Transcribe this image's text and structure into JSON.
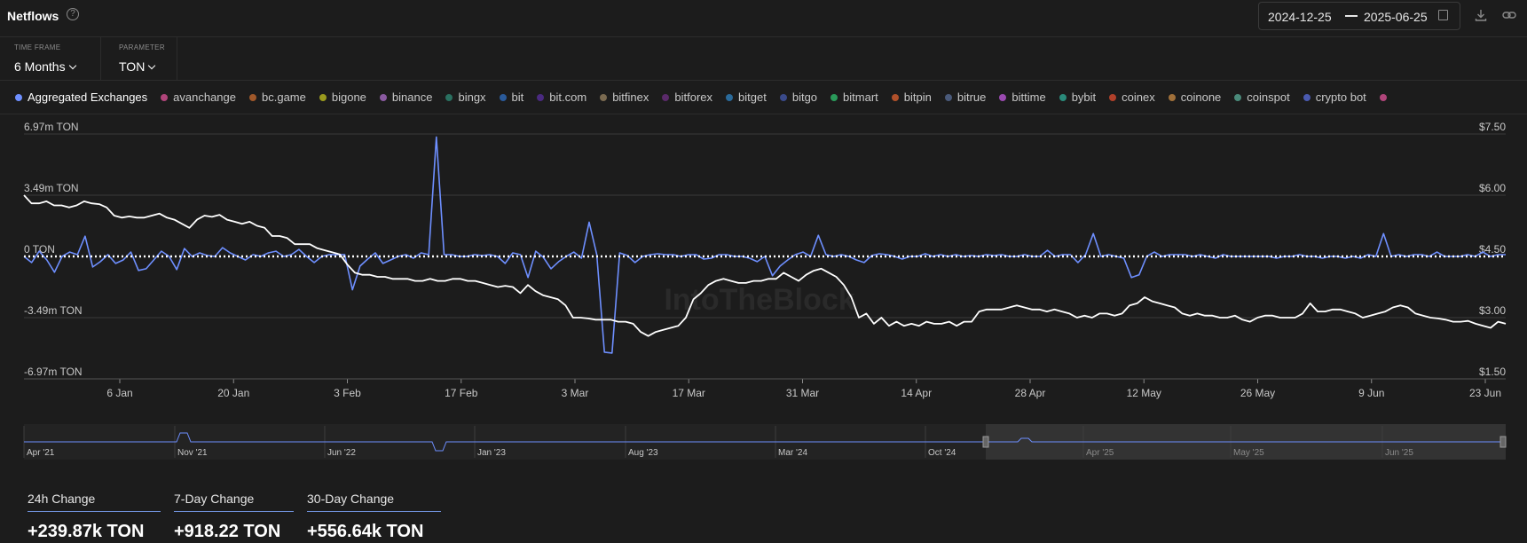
{
  "header": {
    "title": "Netflows",
    "date_from": "2024-12-25",
    "date_to": "2025-06-25"
  },
  "controls": {
    "timeframe_label": "TIME FRAME",
    "timeframe_value": "6 Months",
    "parameter_label": "PARAMETER",
    "parameter_value": "TON"
  },
  "legend": [
    {
      "name": "Aggregated Exchanges",
      "color": "#6e8fff"
    },
    {
      "name": "avanchange",
      "color": "#b0457a"
    },
    {
      "name": "bc.game",
      "color": "#a0582a"
    },
    {
      "name": "bigone",
      "color": "#9a9a1e"
    },
    {
      "name": "binance",
      "color": "#8a5aa0"
    },
    {
      "name": "bingx",
      "color": "#2a7060"
    },
    {
      "name": "bit",
      "color": "#2a5a9a"
    },
    {
      "name": "bit.com",
      "color": "#4a2a80"
    },
    {
      "name": "bitfinex",
      "color": "#7a6a50"
    },
    {
      "name": "bitforex",
      "color": "#5a2a6a"
    },
    {
      "name": "bitget",
      "color": "#2a6a9a"
    },
    {
      "name": "bitgo",
      "color": "#3a4a8a"
    },
    {
      "name": "bitmart",
      "color": "#2a9a5a"
    },
    {
      "name": "bitpin",
      "color": "#b0502a"
    },
    {
      "name": "bitrue",
      "color": "#4a5a7a"
    },
    {
      "name": "bittime",
      "color": "#9a4ab0"
    },
    {
      "name": "bybit",
      "color": "#2a8a7a"
    },
    {
      "name": "coinex",
      "color": "#b0402a"
    },
    {
      "name": "coinone",
      "color": "#a0703a"
    },
    {
      "name": "coinspot",
      "color": "#4a8a7a"
    },
    {
      "name": "crypto bot",
      "color": "#4a5ab0"
    },
    {
      "name": "",
      "color": "#b0457a"
    }
  ],
  "chart_data": {
    "type": "line",
    "left_axis": {
      "ticks": [
        "6.97m TON",
        "3.49m TON",
        "0 TON",
        "-3.49m TON",
        "-6.97m TON"
      ],
      "range": [
        -6.97,
        6.97
      ],
      "unit": "m TON"
    },
    "right_axis": {
      "ticks": [
        "$7.50",
        "$6.00",
        "$4.50",
        "$3.00",
        "$1.50"
      ],
      "range": [
        1.5,
        7.5
      ]
    },
    "x_ticks": [
      "6 Jan",
      "20 Jan",
      "3 Feb",
      "17 Feb",
      "3 Mar",
      "17 Mar",
      "31 Mar",
      "14 Apr",
      "28 Apr",
      "12 May",
      "26 May",
      "9 Jun",
      "23 Jun"
    ],
    "watermark": "IntoTheBlock",
    "series": [
      {
        "name": "Aggregated Exchanges",
        "color": "#6e8fff",
        "values": [
          0.0,
          -0.35,
          0.3,
          -0.2,
          -0.9,
          0.0,
          0.25,
          0.1,
          1.15,
          -0.6,
          -0.3,
          0.1,
          -0.4,
          -0.2,
          0.25,
          -0.8,
          -0.7,
          -0.2,
          0.3,
          0.0,
          -0.75,
          0.45,
          0.0,
          0.2,
          0.05,
          0.0,
          0.5,
          0.2,
          0.0,
          -0.2,
          0.1,
          0.0,
          0.2,
          0.3,
          0.0,
          0.1,
          0.4,
          0.0,
          -0.35,
          0.0,
          0.1,
          0.1,
          0.1,
          -1.9,
          -0.55,
          -0.15,
          0.2,
          -0.4,
          -0.2,
          0.0,
          0.1,
          -0.1,
          0.2,
          0.1,
          6.8,
          0.1,
          0.1,
          0.0,
          0.0,
          0.1,
          0.05,
          0.1,
          0.0,
          -0.4,
          0.2,
          0.1,
          -1.2,
          0.3,
          -0.05,
          -0.7,
          -0.3,
          0.0,
          0.25,
          -0.1,
          1.95,
          0.1,
          -5.45,
          -5.5,
          0.2,
          0.05,
          -0.35,
          0.0,
          0.1,
          0.15,
          0.1,
          0.1,
          0.0,
          0.1,
          0.1,
          -0.15,
          -0.1,
          0.1,
          0.1,
          0.0,
          0.0,
          -0.1,
          -0.3,
          0.0,
          -1.1,
          -0.55,
          -0.2,
          0.1,
          0.25,
          0.0,
          1.2,
          0.1,
          0.0,
          0.1,
          0.0,
          -0.2,
          -0.35,
          0.05,
          0.15,
          0.1,
          0.0,
          -0.15,
          0.0,
          0.0,
          0.15,
          0.0,
          0.1,
          0.0,
          0.1,
          0.0,
          0.05,
          0.0,
          0.1,
          0.05,
          0.1,
          0.0,
          0.0,
          0.1,
          0.0,
          0.0,
          0.35,
          0.0,
          0.1,
          0.1,
          -0.35,
          0.1,
          1.3,
          0.0,
          0.1,
          0.0,
          -0.1,
          -1.2,
          -1.05,
          0.0,
          0.25,
          0.0,
          0.1,
          0.1,
          0.1,
          0.0,
          0.1,
          0.0,
          -0.1,
          0.1,
          0.0,
          0.0,
          0.0,
          0.0,
          0.0,
          0.0,
          -0.1,
          0.0,
          0.0,
          0.1,
          0.0,
          0.0,
          -0.1,
          0.0,
          0.0,
          -0.1,
          0.0,
          -0.1,
          0.1,
          0.0,
          1.3,
          0.0,
          0.1,
          0.0,
          0.1,
          0.1,
          0.0,
          0.25,
          0.0,
          0.0,
          0.0,
          0.1,
          0.0,
          0.25,
          0.0,
          0.1,
          0.1
        ]
      },
      {
        "name": "",
        "color": "#ffffff",
        "values": [
          6.0,
          5.8,
          5.8,
          5.85,
          5.75,
          5.75,
          5.7,
          5.75,
          5.85,
          5.8,
          5.78,
          5.7,
          5.5,
          5.45,
          5.48,
          5.45,
          5.45,
          5.5,
          5.55,
          5.45,
          5.4,
          5.3,
          5.2,
          5.4,
          5.5,
          5.47,
          5.52,
          5.4,
          5.35,
          5.3,
          5.35,
          5.25,
          5.2,
          5.0,
          5.0,
          4.95,
          4.8,
          4.8,
          4.8,
          4.7,
          4.65,
          4.6,
          4.55,
          4.3,
          4.1,
          4.05,
          4.05,
          4.0,
          4.0,
          3.95,
          3.95,
          3.95,
          3.9,
          3.9,
          3.95,
          3.9,
          3.9,
          3.95,
          3.95,
          3.9,
          3.9,
          3.85,
          3.8,
          3.75,
          3.78,
          3.75,
          3.6,
          3.8,
          3.65,
          3.55,
          3.5,
          3.45,
          3.3,
          3.0,
          3.0,
          2.98,
          2.95,
          2.95,
          2.95,
          2.9,
          2.9,
          2.85,
          2.65,
          2.55,
          2.65,
          2.7,
          2.75,
          2.8,
          3.0,
          3.45,
          3.6,
          3.8,
          3.9,
          3.95,
          3.9,
          3.85,
          3.85,
          3.9,
          3.9,
          3.95,
          3.95,
          4.1,
          4.0,
          3.9,
          4.05,
          4.15,
          4.2,
          4.1,
          4.0,
          3.8,
          3.5,
          3.0,
          3.1,
          2.85,
          3.0,
          2.8,
          2.9,
          2.8,
          2.85,
          2.8,
          2.9,
          2.85,
          2.85,
          2.9,
          2.8,
          2.9,
          2.9,
          3.15,
          3.2,
          3.2,
          3.2,
          3.25,
          3.3,
          3.25,
          3.2,
          3.2,
          3.15,
          3.2,
          3.15,
          3.1,
          3.0,
          3.05,
          3.0,
          3.1,
          3.1,
          3.05,
          3.1,
          3.3,
          3.35,
          3.5,
          3.4,
          3.35,
          3.3,
          3.25,
          3.1,
          3.05,
          3.1,
          3.05,
          3.05,
          3.0,
          3.0,
          3.05,
          2.95,
          2.9,
          3.0,
          3.05,
          3.05,
          3.0,
          3.0,
          3.0,
          3.1,
          3.35,
          3.15,
          3.15,
          3.2,
          3.2,
          3.15,
          3.1,
          3.0,
          3.05,
          3.1,
          3.15,
          3.25,
          3.3,
          3.25,
          3.1,
          3.05,
          3.0,
          2.98,
          2.95,
          2.9,
          2.9,
          2.92,
          2.85,
          2.8,
          2.75,
          2.9,
          2.85
        ]
      }
    ]
  },
  "navigator": {
    "labels": [
      "Apr '21",
      "Nov '21",
      "Jun '22",
      "Jan '23",
      "Aug '23",
      "Mar '24",
      "Oct '24",
      "Apr '25",
      "May '25",
      "Jun '25"
    ]
  },
  "stats": [
    {
      "label": "24h Change",
      "value": "+239.87k TON"
    },
    {
      "label": "7-Day Change",
      "value": "+918.22 TON"
    },
    {
      "label": "30-Day Change",
      "value": "+556.64k TON"
    }
  ]
}
